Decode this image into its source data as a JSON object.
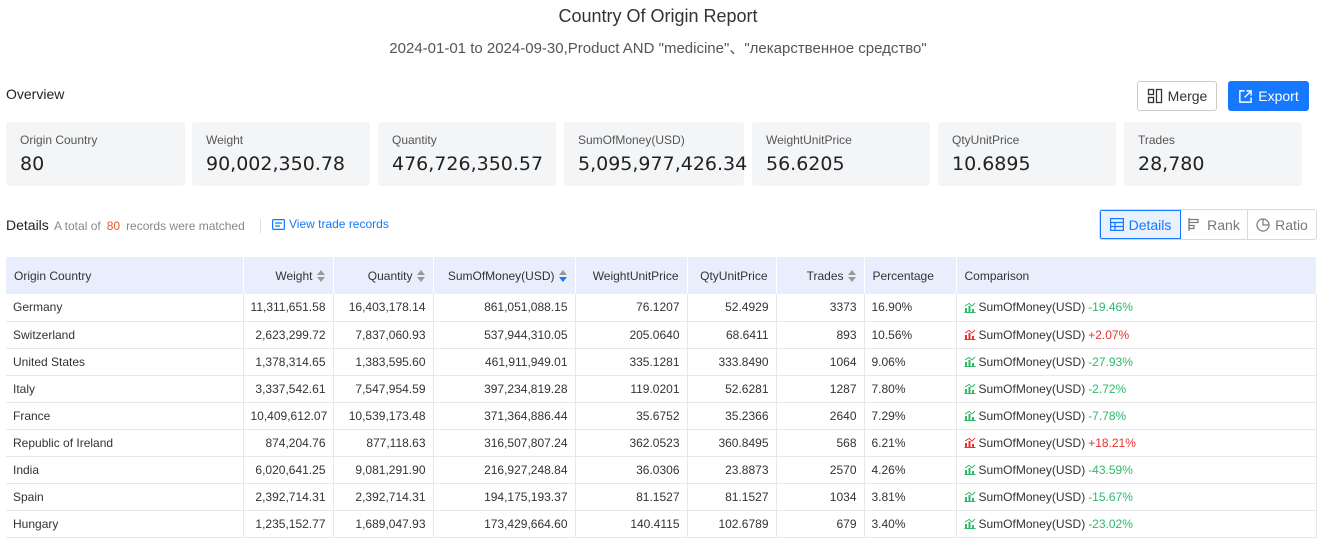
{
  "header": {
    "title": "Country Of Origin Report",
    "subtitle": "2024-01-01 to 2024-09-30,Product AND \"medicine\"、\"лекарственное средство\""
  },
  "overview": {
    "label": "Overview",
    "merge_label": "Merge",
    "export_label": "Export",
    "cards": [
      {
        "label": "Origin Country",
        "value": "80"
      },
      {
        "label": "Weight",
        "value": "90,002,350.78"
      },
      {
        "label": "Quantity",
        "value": "476,726,350.57"
      },
      {
        "label": "SumOfMoney(USD)",
        "value": "5,095,977,426.34"
      },
      {
        "label": "WeightUnitPrice",
        "value": "56.6205"
      },
      {
        "label": "QtyUnitPrice",
        "value": "10.6895"
      },
      {
        "label": "Trades",
        "value": "28,780"
      }
    ]
  },
  "details": {
    "title": "Details",
    "total_prefix": "A total of",
    "total_count": "80",
    "total_suffix": "records were matched",
    "view_link": "View trade records",
    "tabs": [
      "Details",
      "Rank",
      "Ratio"
    ]
  },
  "table": {
    "columns": [
      "Origin Country",
      "Weight",
      "Quantity",
      "SumOfMoney(USD)",
      "WeightUnitPrice",
      "QtyUnitPrice",
      "Trades",
      "Percentage",
      "Comparison"
    ],
    "rows": [
      {
        "country": "Germany",
        "weight": "11,311,651.58",
        "quantity": "16,403,178.14",
        "sum": "861,051,088.15",
        "wup": "76.1207",
        "qup": "52.4929",
        "trades": "3373",
        "pct": "16.90%",
        "cmp_label": "SumOfMoney(USD)",
        "cmp_value": "-19.46%",
        "dir": "down"
      },
      {
        "country": "Switzerland",
        "weight": "2,623,299.72",
        "quantity": "7,837,060.93",
        "sum": "537,944,310.05",
        "wup": "205.0640",
        "qup": "68.6411",
        "trades": "893",
        "pct": "10.56%",
        "cmp_label": "SumOfMoney(USD)",
        "cmp_value": "+2.07%",
        "dir": "up"
      },
      {
        "country": "United States",
        "weight": "1,378,314.65",
        "quantity": "1,383,595.60",
        "sum": "461,911,949.01",
        "wup": "335.1281",
        "qup": "333.8490",
        "trades": "1064",
        "pct": "9.06%",
        "cmp_label": "SumOfMoney(USD)",
        "cmp_value": "-27.93%",
        "dir": "down"
      },
      {
        "country": "Italy",
        "weight": "3,337,542.61",
        "quantity": "7,547,954.59",
        "sum": "397,234,819.28",
        "wup": "119.0201",
        "qup": "52.6281",
        "trades": "1287",
        "pct": "7.80%",
        "cmp_label": "SumOfMoney(USD)",
        "cmp_value": "-2.72%",
        "dir": "down"
      },
      {
        "country": "France",
        "weight": "10,409,612.07",
        "quantity": "10,539,173.48",
        "sum": "371,364,886.44",
        "wup": "35.6752",
        "qup": "35.2366",
        "trades": "2640",
        "pct": "7.29%",
        "cmp_label": "SumOfMoney(USD)",
        "cmp_value": "-7.78%",
        "dir": "down"
      },
      {
        "country": "Republic of Ireland",
        "weight": "874,204.76",
        "quantity": "877,118.63",
        "sum": "316,507,807.24",
        "wup": "362.0523",
        "qup": "360.8495",
        "trades": "568",
        "pct": "6.21%",
        "cmp_label": "SumOfMoney(USD)",
        "cmp_value": "+18.21%",
        "dir": "up"
      },
      {
        "country": "India",
        "weight": "6,020,641.25",
        "quantity": "9,081,291.90",
        "sum": "216,927,248.84",
        "wup": "36.0306",
        "qup": "23.8873",
        "trades": "2570",
        "pct": "4.26%",
        "cmp_label": "SumOfMoney(USD)",
        "cmp_value": "-43.59%",
        "dir": "down"
      },
      {
        "country": "Spain",
        "weight": "2,392,714.31",
        "quantity": "2,392,714.31",
        "sum": "194,175,193.37",
        "wup": "81.1527",
        "qup": "81.1527",
        "trades": "1034",
        "pct": "3.81%",
        "cmp_label": "SumOfMoney(USD)",
        "cmp_value": "-15.67%",
        "dir": "down"
      },
      {
        "country": "Hungary",
        "weight": "1,235,152.77",
        "quantity": "1,689,047.93",
        "sum": "173,429,664.60",
        "wup": "140.4115",
        "qup": "102.6789",
        "trades": "679",
        "pct": "3.40%",
        "cmp_label": "SumOfMoney(USD)",
        "cmp_value": "-23.02%",
        "dir": "down"
      }
    ]
  },
  "colors": {
    "accent": "#1677ff",
    "up": "#e5322d",
    "down": "#2fb86a",
    "header_bg": "#e8eefc"
  }
}
